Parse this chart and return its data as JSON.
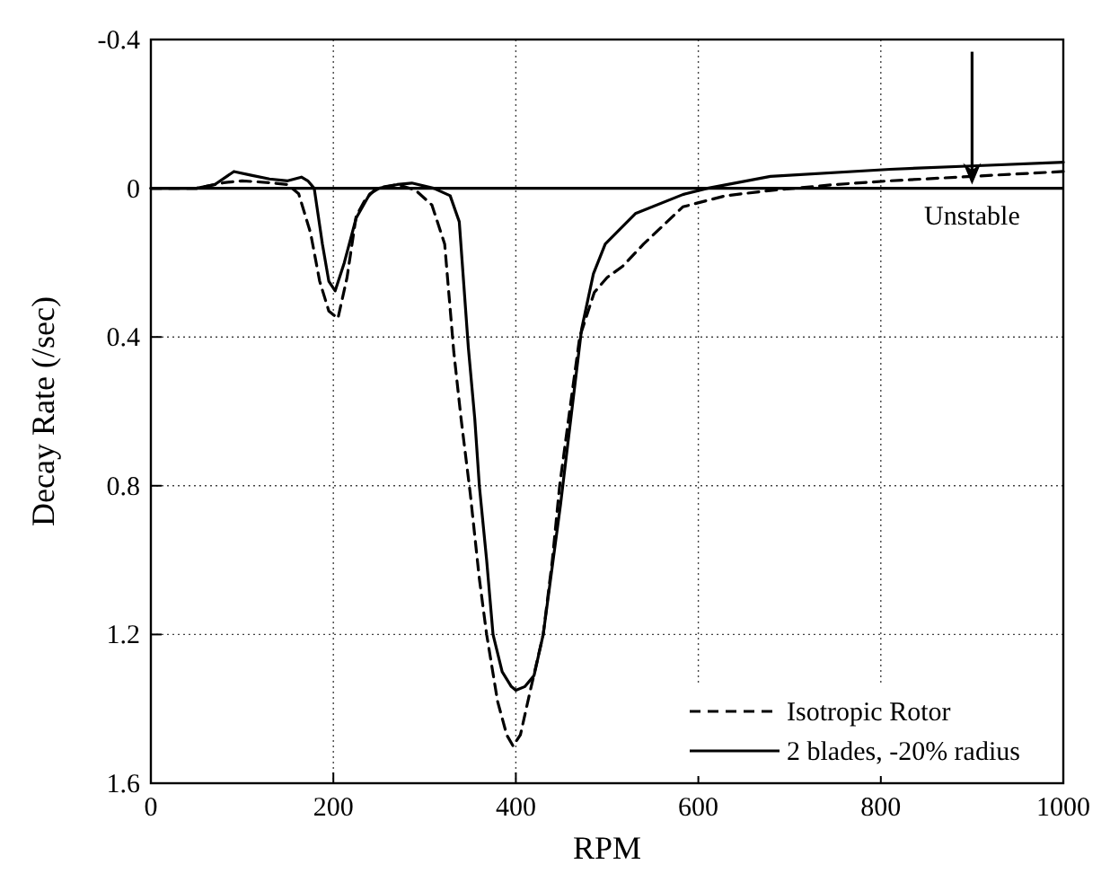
{
  "chart_data": {
    "type": "line",
    "xlabel": "RPM",
    "ylabel": "Decay Rate (/sec)",
    "xlim": [
      0,
      1000
    ],
    "ylim": [
      1.6,
      -0.4
    ],
    "xticks": [
      0,
      200,
      400,
      600,
      800,
      1000
    ],
    "yticks": [
      -0.4,
      0,
      0.4,
      0.8,
      1.2,
      1.6
    ],
    "grid": true,
    "legend": "bottom right",
    "marker": "none",
    "ref_lines": [
      {
        "axis": "y",
        "value": 0,
        "color": "#000000",
        "line_style": "solid"
      }
    ],
    "annotations": [
      "Unstable"
    ],
    "series": [
      {
        "name": "Isotropic Rotor",
        "color": "#000000",
        "line_style": "dashed",
        "x": [
          0,
          50,
          80,
          100,
          130,
          150,
          162,
          175,
          185,
          195,
          205,
          215,
          225,
          235,
          247,
          270,
          290,
          308,
          322,
          332,
          340,
          350,
          360,
          368,
          380,
          390,
          397,
          405,
          415,
          430,
          440,
          448,
          460,
          470,
          486,
          500,
          517,
          540,
          583,
          630,
          679,
          750,
          810,
          900,
          1000
        ],
        "values": [
          0,
          0,
          -0.015,
          -0.02,
          -0.015,
          -0.01,
          0.015,
          0.12,
          0.25,
          0.33,
          0.35,
          0.24,
          0.075,
          0.03,
          0,
          -0.01,
          0.005,
          0.045,
          0.15,
          0.44,
          0.62,
          0.82,
          1.05,
          1.2,
          1.38,
          1.47,
          1.5,
          1.47,
          1.36,
          1.2,
          1.0,
          0.8,
          0.58,
          0.4,
          0.28,
          0.24,
          0.21,
          0.15,
          0.05,
          0.02,
          0.006,
          -0.01,
          -0.02,
          -0.032,
          -0.045
        ]
      },
      {
        "name": "2 blades, -20% radius",
        "color": "#000000",
        "line_style": "solid",
        "x": [
          0,
          50,
          70,
          91,
          110,
          130,
          150,
          165,
          172,
          179,
          188,
          195,
          202,
          212,
          225,
          240,
          250,
          270,
          286,
          310,
          328,
          338,
          348,
          355,
          360,
          368,
          375,
          385,
          395,
          400,
          410,
          420,
          430,
          449,
          472,
          485,
          498,
          531,
          583,
          610,
          679,
          810,
          900,
          1000
        ],
        "values": [
          0,
          0,
          -0.01,
          -0.045,
          -0.035,
          -0.025,
          -0.02,
          -0.03,
          -0.02,
          0,
          0.15,
          0.25,
          0.276,
          0.2,
          0.08,
          0.015,
          0,
          -0.01,
          -0.014,
          0,
          0.02,
          0.09,
          0.43,
          0.62,
          0.8,
          1.0,
          1.2,
          1.3,
          1.34,
          1.35,
          1.34,
          1.31,
          1.2,
          0.85,
          0.38,
          0.23,
          0.15,
          0.068,
          0.017,
          0,
          -0.032,
          -0.051,
          -0.06,
          -0.07
        ]
      }
    ]
  }
}
